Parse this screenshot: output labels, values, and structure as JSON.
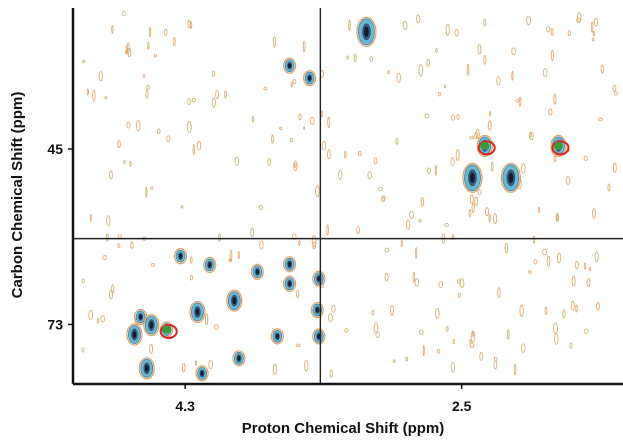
{
  "chart_data": {
    "type": "scatter",
    "title": "",
    "xlabel": "Proton Chemical Shift (ppm)",
    "ylabel": "Carbon Chemical Shift (ppm)",
    "x_axis": {
      "reversed": true,
      "ticks": [
        4.3,
        2.5
      ],
      "tick_labels": [
        "4.3",
        "2.5"
      ],
      "range": [
        5.03,
        1.45
      ]
    },
    "y_axis": {
      "reversed": true,
      "ticks": [
        45,
        73
      ],
      "tick_labels": [
        "45",
        "73"
      ],
      "range": [
        22.5,
        82.5
      ]
    },
    "grid": false,
    "crosshair": {
      "x": 3.42,
      "y": 59.3
    },
    "colors": {
      "contour_outer": "#e0a060",
      "contour_inner": "#6fb6cf",
      "peak_core": "#1a1a2e",
      "highlight_red": "#dd2222",
      "highlight_green": "#3a9a3a"
    },
    "peaks": [
      {
        "x": 3.12,
        "y": 26.3,
        "size": "large"
      },
      {
        "x": 3.62,
        "y": 31.7,
        "size": "small"
      },
      {
        "x": 3.49,
        "y": 33.7,
        "size": "small"
      },
      {
        "x": 2.35,
        "y": 44.5,
        "size": "medium"
      },
      {
        "x": 1.87,
        "y": 44.5,
        "size": "medium"
      },
      {
        "x": 2.43,
        "y": 49.6,
        "size": "large"
      },
      {
        "x": 2.18,
        "y": 49.6,
        "size": "large"
      },
      {
        "x": 4.33,
        "y": 62.1,
        "size": "small"
      },
      {
        "x": 4.14,
        "y": 63.5,
        "size": "small"
      },
      {
        "x": 3.62,
        "y": 63.4,
        "size": "small"
      },
      {
        "x": 3.83,
        "y": 64.6,
        "size": "small"
      },
      {
        "x": 3.43,
        "y": 65.7,
        "size": "small"
      },
      {
        "x": 3.62,
        "y": 66.5,
        "size": "small"
      },
      {
        "x": 3.98,
        "y": 69.2,
        "size": "medium"
      },
      {
        "x": 4.22,
        "y": 71.0,
        "size": "medium"
      },
      {
        "x": 4.59,
        "y": 71.8,
        "size": "small"
      },
      {
        "x": 4.52,
        "y": 73.1,
        "size": "medium"
      },
      {
        "x": 4.42,
        "y": 73.8,
        "size": "small"
      },
      {
        "x": 4.63,
        "y": 74.6,
        "size": "medium"
      },
      {
        "x": 3.7,
        "y": 74.9,
        "size": "small"
      },
      {
        "x": 3.43,
        "y": 74.9,
        "size": "small"
      },
      {
        "x": 4.55,
        "y": 80.0,
        "size": "medium"
      },
      {
        "x": 4.19,
        "y": 80.8,
        "size": "small"
      },
      {
        "x": 3.95,
        "y": 78.4,
        "size": "small"
      },
      {
        "x": 3.44,
        "y": 70.7,
        "size": "small"
      }
    ],
    "highlights": [
      {
        "x": 2.35,
        "y": 44.5,
        "color": "red"
      },
      {
        "x": 1.87,
        "y": 44.5,
        "color": "red"
      },
      {
        "x": 4.42,
        "y": 73.8,
        "color": "red"
      }
    ]
  }
}
